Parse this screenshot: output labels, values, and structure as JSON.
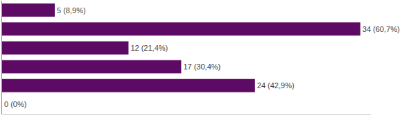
{
  "chart_data": {
    "type": "bar",
    "orientation": "horizontal",
    "categories": [
      null,
      null,
      null,
      null,
      null,
      null
    ],
    "values": [
      5,
      34,
      12,
      17,
      24,
      0
    ],
    "value_labels": [
      "5 (8,9%)",
      "34 (60,7%)",
      "12 (21,4%)",
      "17 (30,4%)",
      "24 (42,9%)",
      "0 (0%)"
    ],
    "color": "#5c0a63",
    "xlim": [
      0,
      35
    ],
    "data_labels": true,
    "tick_labels": false,
    "grid": false
  }
}
